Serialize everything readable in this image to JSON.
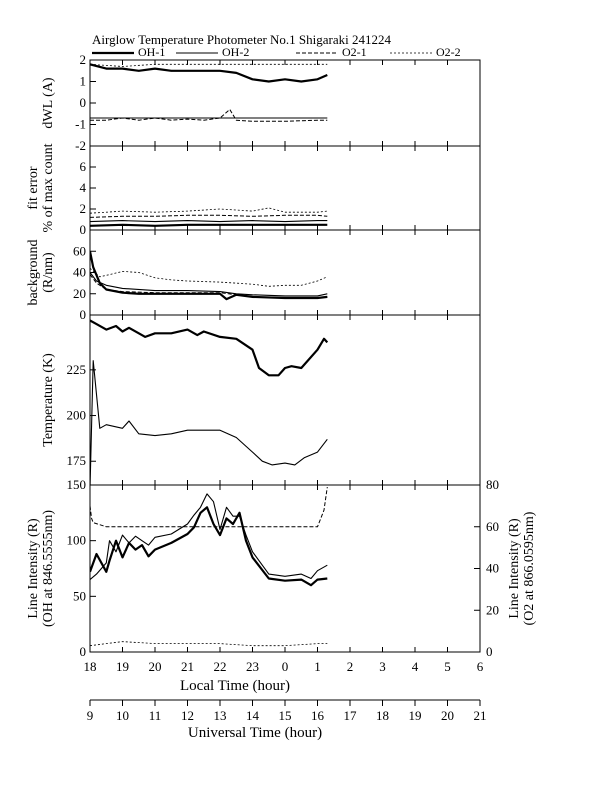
{
  "chart_data": {
    "title": "Airglow Temperature Photometer No.1  Shigaraki  241224",
    "type": "line",
    "legend": {
      "placement": "top",
      "entries": [
        {
          "label": "OH-1",
          "style": "solid-thick"
        },
        {
          "label": "OH-2",
          "style": "solid-thin"
        },
        {
          "label": "O2-1",
          "style": "dashed"
        },
        {
          "label": "O2-2",
          "style": "dotted"
        }
      ]
    },
    "x_local": {
      "label": "Local Time (hour)",
      "tick_labels": [
        "18",
        "19",
        "20",
        "21",
        "22",
        "23",
        "0",
        "1",
        "2",
        "3",
        "4",
        "5",
        "6"
      ],
      "range_hours": [
        18,
        30
      ]
    },
    "x_universal": {
      "label": "Universal Time (hour)",
      "tick_labels": [
        "9",
        "10",
        "11",
        "12",
        "13",
        "14",
        "15",
        "16",
        "17",
        "18",
        "19",
        "20",
        "21"
      ],
      "range_hours": [
        9,
        21
      ]
    },
    "panels": [
      {
        "id": "dwl",
        "ylabel_lines": [
          "dWL (A)"
        ],
        "ylim": [
          -2,
          2
        ],
        "ticks": [
          "-2",
          "-1",
          "0",
          "1",
          "2"
        ],
        "series": [
          {
            "name": "OH-1",
            "x": [
              9.0,
              9.5,
              10.0,
              10.5,
              11.0,
              11.5,
              12.0,
              12.5,
              13.0,
              13.5,
              14.0,
              14.5,
              15.0,
              15.5,
              16.0,
              16.3
            ],
            "y": [
              1.8,
              1.6,
              1.6,
              1.5,
              1.6,
              1.5,
              1.5,
              1.5,
              1.5,
              1.4,
              1.1,
              1.0,
              1.1,
              1.0,
              1.1,
              1.3
            ]
          },
          {
            "name": "OH-2",
            "x": [
              9.0,
              16.3
            ],
            "y": [
              -0.7,
              -0.7
            ]
          },
          {
            "name": "O2-1",
            "x": [
              9.0,
              9.5,
              10.0,
              10.5,
              11.0,
              11.5,
              12.0,
              12.5,
              13.0,
              13.3,
              13.5,
              14.0,
              15.0,
              16.0,
              16.3
            ],
            "y": [
              -0.8,
              -0.8,
              -0.7,
              -0.8,
              -0.7,
              -0.8,
              -0.75,
              -0.8,
              -0.7,
              -0.3,
              -0.8,
              -0.85,
              -0.85,
              -0.8,
              -0.8
            ]
          },
          {
            "name": "O2-2",
            "x": [
              9.0,
              10.0,
              11.0,
              12.0,
              13.0,
              14.0,
              15.0,
              16.0,
              16.3
            ],
            "y": [
              1.8,
              1.7,
              1.8,
              1.8,
              1.8,
              1.8,
              1.8,
              1.8,
              1.8
            ]
          }
        ]
      },
      {
        "id": "fiterr",
        "ylabel_lines": [
          "fit error",
          "% of max count"
        ],
        "ylim": [
          0,
          8
        ],
        "ticks": [
          "0",
          "2",
          "4",
          "6"
        ],
        "series": [
          {
            "name": "OH-1",
            "x": [
              9.0,
              10.0,
              11.0,
              12.0,
              13.0,
              14.0,
              15.0,
              16.0,
              16.3
            ],
            "y": [
              0.4,
              0.5,
              0.4,
              0.5,
              0.5,
              0.5,
              0.5,
              0.5,
              0.5
            ]
          },
          {
            "name": "OH-2",
            "x": [
              9.0,
              10.0,
              11.0,
              12.0,
              13.0,
              14.0,
              15.0,
              16.0,
              16.3
            ],
            "y": [
              0.8,
              0.9,
              0.8,
              0.9,
              0.8,
              0.9,
              0.8,
              0.9,
              0.9
            ]
          },
          {
            "name": "O2-1",
            "x": [
              9.0,
              10.0,
              11.0,
              12.0,
              13.0,
              14.0,
              15.0,
              16.0,
              16.3
            ],
            "y": [
              1.2,
              1.3,
              1.3,
              1.4,
              1.4,
              1.3,
              1.4,
              1.4,
              1.3
            ]
          },
          {
            "name": "O2-2",
            "x": [
              9.0,
              9.5,
              10.0,
              11.0,
              12.0,
              13.0,
              14.0,
              14.5,
              15.0,
              16.0,
              16.3
            ],
            "y": [
              1.6,
              1.7,
              1.8,
              1.7,
              1.8,
              2.0,
              1.8,
              2.1,
              1.7,
              1.7,
              1.8
            ]
          }
        ]
      },
      {
        "id": "bg",
        "ylabel_lines": [
          "background",
          "(R/nm)"
        ],
        "ylim": [
          0,
          80
        ],
        "ticks": [
          "0",
          "20",
          "40",
          "60"
        ],
        "series": [
          {
            "name": "OH-1",
            "x": [
              9.0,
              9.1,
              9.3,
              9.5,
              10.0,
              10.5,
              11.0,
              12.0,
              13.0,
              13.2,
              13.5,
              14.0,
              15.0,
              16.0,
              16.3
            ],
            "y": [
              60,
              45,
              30,
              24,
              21,
              20,
              20,
              20,
              20,
              15,
              19,
              17,
              16,
              16,
              17
            ]
          },
          {
            "name": "OH-2",
            "x": [
              9.0,
              9.2,
              9.5,
              10.0,
              11.0,
              12.0,
              13.0,
              13.5,
              14.0,
              15.0,
              16.0,
              16.3
            ],
            "y": [
              40,
              32,
              28,
              25,
              23,
              23,
              22,
              20,
              19,
              18,
              18,
              20
            ]
          },
          {
            "name": "O2-1",
            "x": [
              9.0,
              9.2,
              9.5,
              10.0,
              11.0,
              12.0,
              13.0,
              13.5,
              14.0,
              15.0,
              16.0,
              16.3
            ],
            "y": [
              38,
              30,
              24,
              22,
              21,
              21,
              21,
              19,
              17,
              16,
              16,
              17
            ]
          },
          {
            "name": "O2-2",
            "x": [
              9.0,
              9.3,
              9.6,
              10.0,
              10.5,
              11.0,
              11.5,
              12.0,
              13.0,
              14.0,
              14.5,
              15.0,
              15.5,
              16.0,
              16.3
            ],
            "y": [
              44,
              36,
              38,
              41,
              40,
              35,
              33,
              32,
              31,
              29,
              27,
              28,
              28,
              32,
              36
            ]
          }
        ]
      },
      {
        "id": "temp",
        "ylabel_lines": [
          "Temperature (K)"
        ],
        "ylim": [
          162,
          255
        ],
        "ticks": [
          "175",
          "200",
          "225"
        ],
        "series": [
          {
            "name": "OH-1",
            "x": [
              9.0,
              9.2,
              9.5,
              9.8,
              10.0,
              10.2,
              10.5,
              10.7,
              11.0,
              11.5,
              12.0,
              12.3,
              12.5,
              13.0,
              13.5,
              14.0,
              14.2,
              14.5,
              14.8,
              15.0,
              15.2,
              15.5,
              16.0,
              16.2,
              16.3
            ],
            "y": [
              252,
              250,
              247,
              249,
              246,
              248,
              245,
              243,
              245,
              245,
              247,
              244,
              246,
              243,
              242,
              236,
              226,
              222,
              222,
              226,
              227,
              226,
              236,
              242,
              240
            ]
          },
          {
            "name": "OH-2",
            "x": [
              9.0,
              9.1,
              9.3,
              9.5,
              10.0,
              10.2,
              10.5,
              11.0,
              11.5,
              12.0,
              12.5,
              13.0,
              13.5,
              14.0,
              14.3,
              14.6,
              15.0,
              15.3,
              15.6,
              16.0,
              16.3
            ],
            "y": [
              160,
              230,
              193,
              195,
              193,
              197,
              190,
              189,
              190,
              192,
              192,
              192,
              188,
              180,
              175,
              173,
              174,
              173,
              177,
              180,
              187
            ]
          }
        ]
      },
      {
        "id": "int",
        "ylabel_lines": [
          "Line Intensity (R)",
          "(OH at 846.5555nm)"
        ],
        "ylabel_right_lines": [
          "Line Intensity (R)",
          "(O2 at 866.0595nm)"
        ],
        "ylim": [
          0,
          150
        ],
        "ticks": [
          "0",
          "50",
          "100",
          "150"
        ],
        "ylim_right": [
          0,
          80
        ],
        "ticks_right": [
          "0",
          "20",
          "40",
          "60",
          "80"
        ],
        "series": [
          {
            "name": "OH-1",
            "axis": "left",
            "x": [
              9.0,
              9.2,
              9.5,
              9.6,
              9.8,
              10.0,
              10.2,
              10.4,
              10.6,
              10.8,
              11.0,
              11.5,
              12.0,
              12.2,
              12.4,
              12.6,
              12.8,
              13.0,
              13.2,
              13.4,
              13.6,
              13.8,
              14.0,
              14.5,
              15.0,
              15.5,
              15.8,
              16.0,
              16.3
            ],
            "y": [
              72,
              88,
              72,
              82,
              100,
              85,
              98,
              92,
              96,
              86,
              92,
              98,
              106,
              112,
              125,
              130,
              115,
              105,
              120,
              115,
              125,
              100,
              85,
              66,
              64,
              65,
              60,
              65,
              66
            ]
          },
          {
            "name": "OH-2",
            "axis": "left",
            "x": [
              9.0,
              9.2,
              9.5,
              9.6,
              9.8,
              10.0,
              10.2,
              10.4,
              10.6,
              10.8,
              11.0,
              11.5,
              12.0,
              12.2,
              12.4,
              12.6,
              12.8,
              13.0,
              13.2,
              13.4,
              13.6,
              13.8,
              14.0,
              14.5,
              15.0,
              15.5,
              15.8,
              16.0,
              16.3
            ],
            "y": [
              65,
              70,
              80,
              100,
              90,
              105,
              98,
              104,
              100,
              96,
              103,
              106,
              115,
              123,
              130,
              142,
              135,
              110,
              130,
              122,
              122,
              105,
              90,
              70,
              68,
              70,
              66,
              73,
              78
            ]
          },
          {
            "name": "O2-1",
            "axis": "right",
            "x": [
              9.0,
              9.05,
              9.1,
              9.3,
              9.5,
              10.0,
              11.0,
              12.0,
              13.0,
              14.0,
              15.0,
              16.0,
              16.2,
              16.3
            ],
            "y": [
              70,
              64,
              62,
              61,
              60,
              60,
              60,
              60,
              60,
              60,
              60,
              60,
              68,
              79
            ]
          },
          {
            "name": "O2-2",
            "axis": "right",
            "x": [
              9.0,
              9.5,
              10.0,
              11.0,
              12.0,
              13.0,
              14.0,
              15.0,
              16.0,
              16.3
            ],
            "y": [
              3,
              4,
              5,
              4,
              4,
              4,
              3,
              3,
              4,
              4
            ]
          }
        ]
      }
    ]
  }
}
